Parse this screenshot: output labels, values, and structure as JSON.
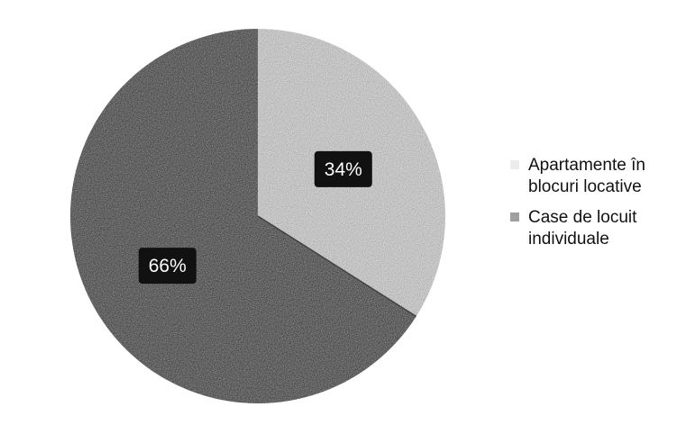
{
  "chart_data": {
    "type": "pie",
    "title": "",
    "series": [
      {
        "name": "",
        "values": [
          34,
          66
        ]
      }
    ],
    "categories": [
      "Apartamente în blocuri locative",
      "Case de locuit individuale"
    ],
    "data_labels": [
      "34%",
      "66%"
    ],
    "legend_placement": "right",
    "slice_colors": [
      "#ececec",
      "#9f9f9f"
    ],
    "label_box_color": "#111111",
    "label_text_color": "#ffffff"
  }
}
